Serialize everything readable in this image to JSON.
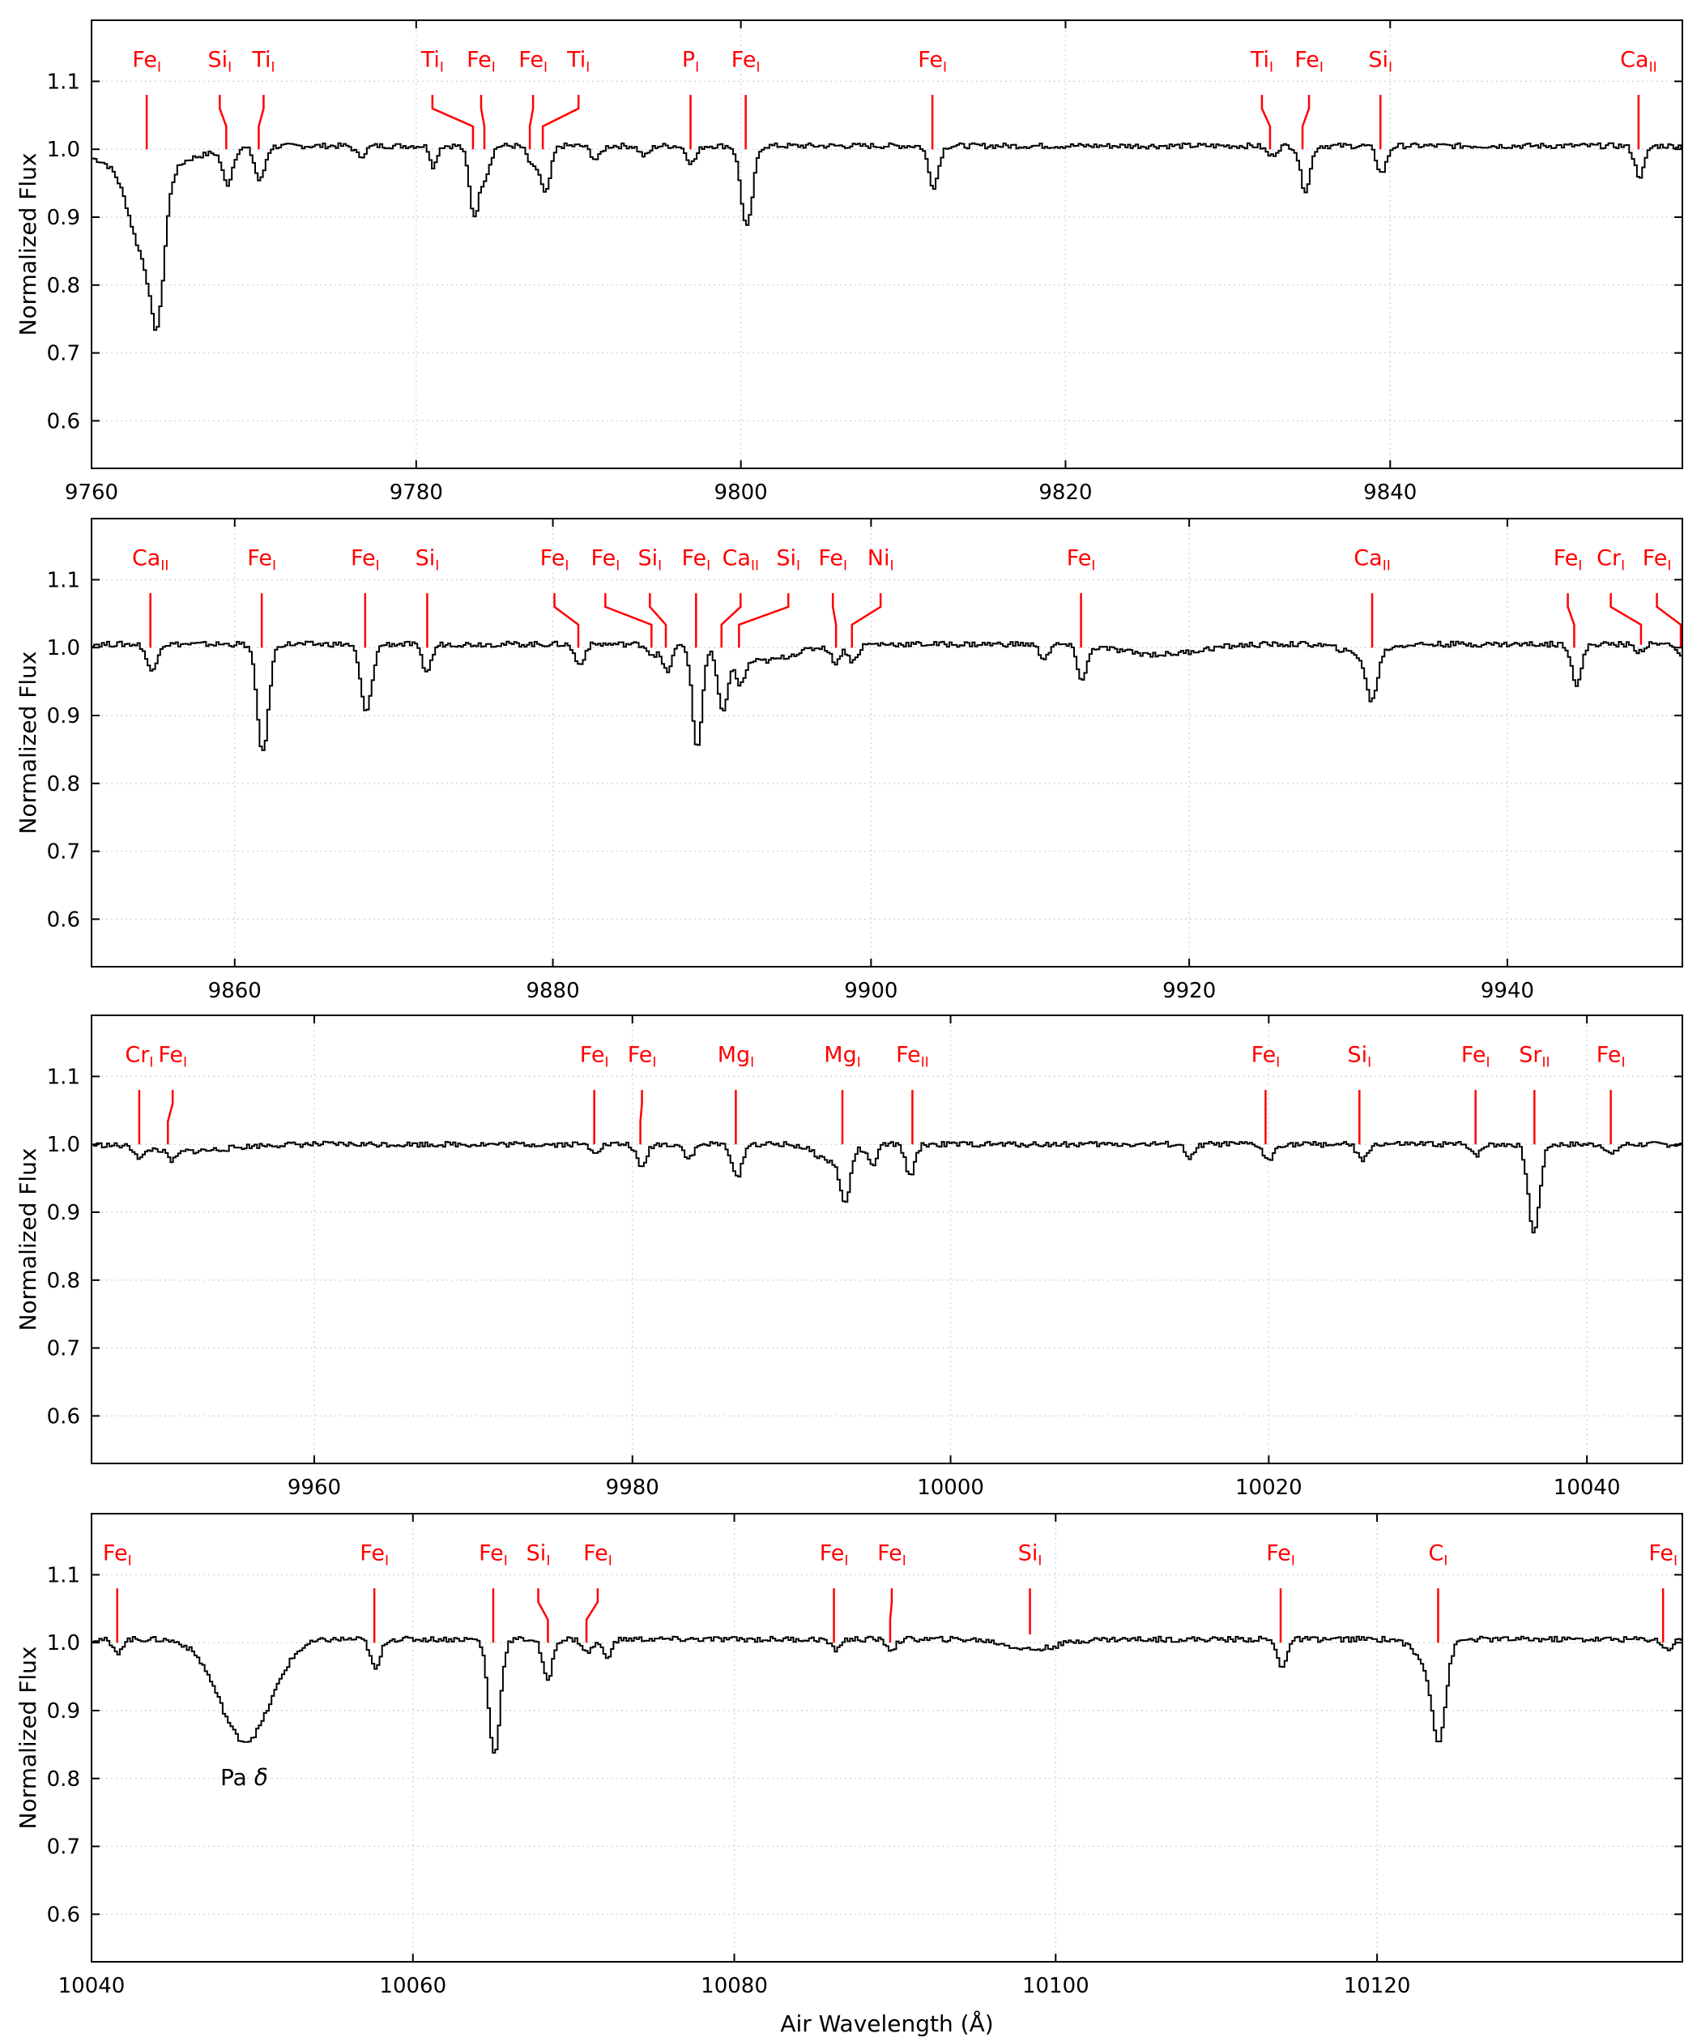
{
  "figure": {
    "xlabel": "Air Wavelength (Å)",
    "ylabel": "Normalized Flux",
    "colors": {
      "spectrum": "#000000",
      "line_marker": "#ff0000",
      "grid": "#d9d9d9"
    }
  },
  "chart_data": [
    {
      "type": "line",
      "panel": 1,
      "xlim": [
        9760,
        9858
      ],
      "ylim": [
        0.53,
        1.19
      ],
      "xticks": [
        9760,
        9780,
        9800,
        9820,
        9840
      ],
      "yticks": [
        0.6,
        0.7,
        0.8,
        0.9,
        1.0,
        1.1
      ],
      "grid": true,
      "continuum": 1.005,
      "absorption_lines": [
        {
          "x": 9763.2,
          "depth": 0.13,
          "width": 0.9
        },
        {
          "x": 9764.0,
          "depth": 0.15,
          "width": 0.4
        },
        {
          "x": 9768.3,
          "depth": 0.05,
          "width": 0.3
        },
        {
          "x": 9770.3,
          "depth": 0.05,
          "width": 0.3
        },
        {
          "x": 9776.5,
          "depth": 0.015,
          "width": 0.3
        },
        {
          "x": 9781.0,
          "depth": 0.03,
          "width": 0.2
        },
        {
          "x": 9783.5,
          "depth": 0.1,
          "width": 0.3
        },
        {
          "x": 9784.2,
          "depth": 0.04,
          "width": 0.3
        },
        {
          "x": 9787.1,
          "depth": 0.03,
          "width": 0.3
        },
        {
          "x": 9787.9,
          "depth": 0.07,
          "width": 0.3
        },
        {
          "x": 9791.0,
          "depth": 0.02,
          "width": 0.3
        },
        {
          "x": 9794.0,
          "depth": 0.015,
          "width": 0.3
        },
        {
          "x": 9796.9,
          "depth": 0.025,
          "width": 0.3
        },
        {
          "x": 9800.3,
          "depth": 0.12,
          "width": 0.35
        },
        {
          "x": 9811.8,
          "depth": 0.06,
          "width": 0.3
        },
        {
          "x": 9832.6,
          "depth": 0.015,
          "width": 0.3
        },
        {
          "x": 9834.7,
          "depth": 0.065,
          "width": 0.3
        },
        {
          "x": 9839.4,
          "depth": 0.04,
          "width": 0.3
        },
        {
          "x": 9855.3,
          "depth": 0.045,
          "width": 0.3
        }
      ],
      "broad_features": [
        {
          "x": 9763.0,
          "depth": 0.03,
          "width": 3.0
        }
      ],
      "line_ids": [
        {
          "x": 9763.4,
          "label_x": 9763.4,
          "element": "Fe",
          "ion": "I"
        },
        {
          "x": 9768.3,
          "label_x": 9767.9,
          "element": "Si",
          "ion": "I"
        },
        {
          "x": 9770.3,
          "label_x": 9770.6,
          "element": "Ti",
          "ion": "I"
        },
        {
          "x": 9783.5,
          "label_x": 9781.0,
          "element": "Ti",
          "ion": "I"
        },
        {
          "x": 9784.2,
          "label_x": 9784.0,
          "element": "Fe",
          "ion": "I"
        },
        {
          "x": 9787.0,
          "label_x": 9787.2,
          "element": "Fe",
          "ion": "I"
        },
        {
          "x": 9787.8,
          "label_x": 9790.0,
          "element": "Ti",
          "ion": "I"
        },
        {
          "x": 9796.9,
          "label_x": 9796.9,
          "element": "P",
          "ion": "I"
        },
        {
          "x": 9800.3,
          "label_x": 9800.3,
          "element": "Fe",
          "ion": "I"
        },
        {
          "x": 9811.8,
          "label_x": 9811.8,
          "element": "Fe",
          "ion": "I"
        },
        {
          "x": 9832.6,
          "label_x": 9832.1,
          "element": "Ti",
          "ion": "I"
        },
        {
          "x": 9834.6,
          "label_x": 9835.0,
          "element": "Fe",
          "ion": "I"
        },
        {
          "x": 9839.4,
          "label_x": 9839.4,
          "element": "Si",
          "ion": "I"
        },
        {
          "x": 9855.3,
          "label_x": 9855.3,
          "element": "Ca",
          "ion": "II"
        }
      ],
      "feature_labels": []
    },
    {
      "type": "line",
      "panel": 2,
      "xlim": [
        9851,
        9951
      ],
      "ylim": [
        0.53,
        1.19
      ],
      "xticks": [
        9860,
        9880,
        9900,
        9920,
        9940
      ],
      "yticks": [
        0.6,
        0.7,
        0.8,
        0.9,
        1.0,
        1.1
      ],
      "grid": true,
      "continuum": 1.005,
      "absorption_lines": [
        {
          "x": 9854.7,
          "depth": 0.04,
          "width": 0.3
        },
        {
          "x": 9861.7,
          "depth": 0.16,
          "width": 0.35
        },
        {
          "x": 9868.2,
          "depth": 0.1,
          "width": 0.35
        },
        {
          "x": 9872.0,
          "depth": 0.04,
          "width": 0.3
        },
        {
          "x": 9881.6,
          "depth": 0.03,
          "width": 0.3
        },
        {
          "x": 9886.2,
          "depth": 0.015,
          "width": 0.3
        },
        {
          "x": 9887.1,
          "depth": 0.04,
          "width": 0.3
        },
        {
          "x": 9889.0,
          "depth": 0.15,
          "width": 0.3
        },
        {
          "x": 9890.6,
          "depth": 0.09,
          "width": 0.3
        },
        {
          "x": 9891.7,
          "depth": 0.04,
          "width": 0.3
        },
        {
          "x": 9897.7,
          "depth": 0.025,
          "width": 0.3
        },
        {
          "x": 9898.8,
          "depth": 0.025,
          "width": 0.3
        },
        {
          "x": 9910.8,
          "depth": 0.02,
          "width": 0.3
        },
        {
          "x": 9913.2,
          "depth": 0.05,
          "width": 0.3
        },
        {
          "x": 9931.4,
          "depth": 0.07,
          "width": 0.35
        },
        {
          "x": 9944.3,
          "depth": 0.06,
          "width": 0.3
        },
        {
          "x": 9948.2,
          "depth": 0.01,
          "width": 0.3
        },
        {
          "x": 9951.0,
          "depth": 0.02,
          "width": 0.3
        }
      ],
      "broad_features": [
        {
          "x": 9893.0,
          "depth": 0.025,
          "width": 2.0
        },
        {
          "x": 9918.0,
          "depth": 0.015,
          "width": 2.5
        },
        {
          "x": 9930.8,
          "depth": 0.015,
          "width": 1.2
        }
      ],
      "line_ids": [
        {
          "x": 9854.7,
          "label_x": 9854.7,
          "element": "Ca",
          "ion": "II"
        },
        {
          "x": 9861.7,
          "label_x": 9861.7,
          "element": "Fe",
          "ion": "I"
        },
        {
          "x": 9868.2,
          "label_x": 9868.2,
          "element": "Fe",
          "ion": "I"
        },
        {
          "x": 9872.1,
          "label_x": 9872.1,
          "element": "Si",
          "ion": "I"
        },
        {
          "x": 9881.6,
          "label_x": 9880.1,
          "element": "Fe",
          "ion": "I"
        },
        {
          "x": 9886.2,
          "label_x": 9883.3,
          "element": "Fe",
          "ion": "I"
        },
        {
          "x": 9887.1,
          "label_x": 9886.1,
          "element": "Si",
          "ion": "I"
        },
        {
          "x": 9889.0,
          "label_x": 9889.0,
          "element": "Fe",
          "ion": "I"
        },
        {
          "x": 9890.6,
          "label_x": 9891.8,
          "element": "Ca",
          "ion": "II"
        },
        {
          "x": 9891.7,
          "label_x": 9894.8,
          "element": "Si",
          "ion": "I"
        },
        {
          "x": 9897.8,
          "label_x": 9897.6,
          "element": "Fe",
          "ion": "I"
        },
        {
          "x": 9898.8,
          "label_x": 9900.6,
          "element": "Ni",
          "ion": "I"
        },
        {
          "x": 9913.2,
          "label_x": 9913.2,
          "element": "Fe",
          "ion": "I"
        },
        {
          "x": 9931.5,
          "label_x": 9931.5,
          "element": "Ca",
          "ion": "II"
        },
        {
          "x": 9944.2,
          "label_x": 9943.8,
          "element": "Fe",
          "ion": "I"
        },
        {
          "x": 9948.4,
          "label_x": 9946.5,
          "element": "Cr",
          "ion": "I"
        },
        {
          "x": 9950.9,
          "label_x": 9949.4,
          "element": "Fe",
          "ion": "I"
        }
      ],
      "feature_labels": []
    },
    {
      "type": "line",
      "panel": 3,
      "xlim": [
        9946,
        10046
      ],
      "ylim": [
        0.53,
        1.19
      ],
      "xticks": [
        9960,
        9980,
        10000,
        10020,
        10040
      ],
      "yticks": [
        0.6,
        0.7,
        0.8,
        0.9,
        1.0,
        1.1
      ],
      "grid": true,
      "continuum": 1.0,
      "absorption_lines": [
        {
          "x": 9949.0,
          "depth": 0.015,
          "width": 0.3
        },
        {
          "x": 9951.0,
          "depth": 0.015,
          "width": 0.3
        },
        {
          "x": 9977.6,
          "depth": 0.01,
          "width": 0.3
        },
        {
          "x": 9980.5,
          "depth": 0.035,
          "width": 0.3
        },
        {
          "x": 9983.5,
          "depth": 0.02,
          "width": 0.3
        },
        {
          "x": 9986.5,
          "depth": 0.05,
          "width": 0.3
        },
        {
          "x": 9993.3,
          "depth": 0.07,
          "width": 0.3
        },
        {
          "x": 9995.0,
          "depth": 0.03,
          "width": 0.3
        },
        {
          "x": 9997.4,
          "depth": 0.045,
          "width": 0.3
        },
        {
          "x": 10015.0,
          "depth": 0.02,
          "width": 0.3
        },
        {
          "x": 10019.9,
          "depth": 0.025,
          "width": 0.3
        },
        {
          "x": 10025.8,
          "depth": 0.025,
          "width": 0.3
        },
        {
          "x": 10033.0,
          "depth": 0.015,
          "width": 0.3
        },
        {
          "x": 10036.6,
          "depth": 0.13,
          "width": 0.35
        },
        {
          "x": 10041.5,
          "depth": 0.015,
          "width": 0.3
        }
      ],
      "broad_features": [
        {
          "x": 9952.0,
          "depth": 0.01,
          "width": 2.5
        },
        {
          "x": 9992.5,
          "depth": 0.025,
          "width": 1.0
        }
      ],
      "line_ids": [
        {
          "x": 9949.0,
          "label_x": 9949.0,
          "element": "Cr",
          "ion": "I"
        },
        {
          "x": 9950.8,
          "label_x": 9951.1,
          "element": "Fe",
          "ion": "I"
        },
        {
          "x": 9977.6,
          "label_x": 9977.6,
          "element": "Fe",
          "ion": "I"
        },
        {
          "x": 9980.5,
          "label_x": 9980.6,
          "element": "Fe",
          "ion": "I"
        },
        {
          "x": 9986.5,
          "label_x": 9986.5,
          "element": "Mg",
          "ion": "I"
        },
        {
          "x": 9993.2,
          "label_x": 9993.2,
          "element": "Mg",
          "ion": "I"
        },
        {
          "x": 9997.6,
          "label_x": 9997.6,
          "element": "Fe",
          "ion": "II"
        },
        {
          "x": 10019.8,
          "label_x": 10019.8,
          "element": "Fe",
          "ion": "I"
        },
        {
          "x": 10025.7,
          "label_x": 10025.7,
          "element": "Si",
          "ion": "I"
        },
        {
          "x": 10033.0,
          "label_x": 10033.0,
          "element": "Fe",
          "ion": "I"
        },
        {
          "x": 10036.7,
          "label_x": 10036.7,
          "element": "Sr",
          "ion": "II"
        },
        {
          "x": 10041.5,
          "label_x": 10041.5,
          "element": "Fe",
          "ion": "I"
        }
      ],
      "feature_labels": []
    },
    {
      "type": "line",
      "panel": 4,
      "xlim": [
        10040,
        10139
      ],
      "ylim": [
        0.53,
        1.19
      ],
      "xticks": [
        10040,
        10060,
        10080,
        10100,
        10120
      ],
      "yticks": [
        0.6,
        0.7,
        0.8,
        0.9,
        1.0,
        1.1
      ],
      "grid": true,
      "continuum": 1.005,
      "absorption_lines": [
        {
          "x": 10041.5,
          "depth": 0.02,
          "width": 0.3
        },
        {
          "x": 10057.6,
          "depth": 0.045,
          "width": 0.3
        },
        {
          "x": 10065.0,
          "depth": 0.17,
          "width": 0.35
        },
        {
          "x": 10068.3,
          "depth": 0.06,
          "width": 0.3
        },
        {
          "x": 10070.8,
          "depth": 0.02,
          "width": 0.3
        },
        {
          "x": 10072.0,
          "depth": 0.025,
          "width": 0.3
        },
        {
          "x": 10086.2,
          "depth": 0.015,
          "width": 0.3
        },
        {
          "x": 10089.7,
          "depth": 0.015,
          "width": 0.3
        },
        {
          "x": 10114.0,
          "depth": 0.04,
          "width": 0.3
        },
        {
          "x": 10123.8,
          "depth": 0.12,
          "width": 0.4
        },
        {
          "x": 10138.0,
          "depth": 0.015,
          "width": 0.3
        }
      ],
      "broad_features": [
        {
          "x": 10049.5,
          "depth": 0.15,
          "width": 1.6
        },
        {
          "x": 10098.5,
          "depth": 0.015,
          "width": 1.5
        },
        {
          "x": 10123.2,
          "depth": 0.04,
          "width": 0.8
        }
      ],
      "line_ids": [
        {
          "x": 10041.6,
          "label_x": 10041.6,
          "element": "Fe",
          "ion": "I"
        },
        {
          "x": 10057.6,
          "label_x": 10057.6,
          "element": "Fe",
          "ion": "I"
        },
        {
          "x": 10065.0,
          "label_x": 10065.0,
          "element": "Fe",
          "ion": "I"
        },
        {
          "x": 10068.4,
          "label_x": 10067.8,
          "element": "Si",
          "ion": "I"
        },
        {
          "x": 10070.8,
          "label_x": 10071.5,
          "element": "Fe",
          "ion": "I"
        },
        {
          "x": 10086.2,
          "label_x": 10086.2,
          "element": "Fe",
          "ion": "I"
        },
        {
          "x": 10089.7,
          "label_x": 10089.8,
          "element": "Fe",
          "ion": "I"
        },
        {
          "x": 10098.4,
          "label_x": 10098.4,
          "element": "Si",
          "ion": "I"
        },
        {
          "x": 10114.0,
          "label_x": 10114.0,
          "element": "Fe",
          "ion": "I"
        },
        {
          "x": 10123.8,
          "label_x": 10123.8,
          "element": "C",
          "ion": "I"
        },
        {
          "x": 10137.8,
          "label_x": 10137.8,
          "element": "Fe",
          "ion": "I"
        }
      ],
      "feature_labels": [
        {
          "text_main": "Pa",
          "text_symbol": "δ",
          "x": 10049.5,
          "y": 0.79
        }
      ]
    }
  ]
}
